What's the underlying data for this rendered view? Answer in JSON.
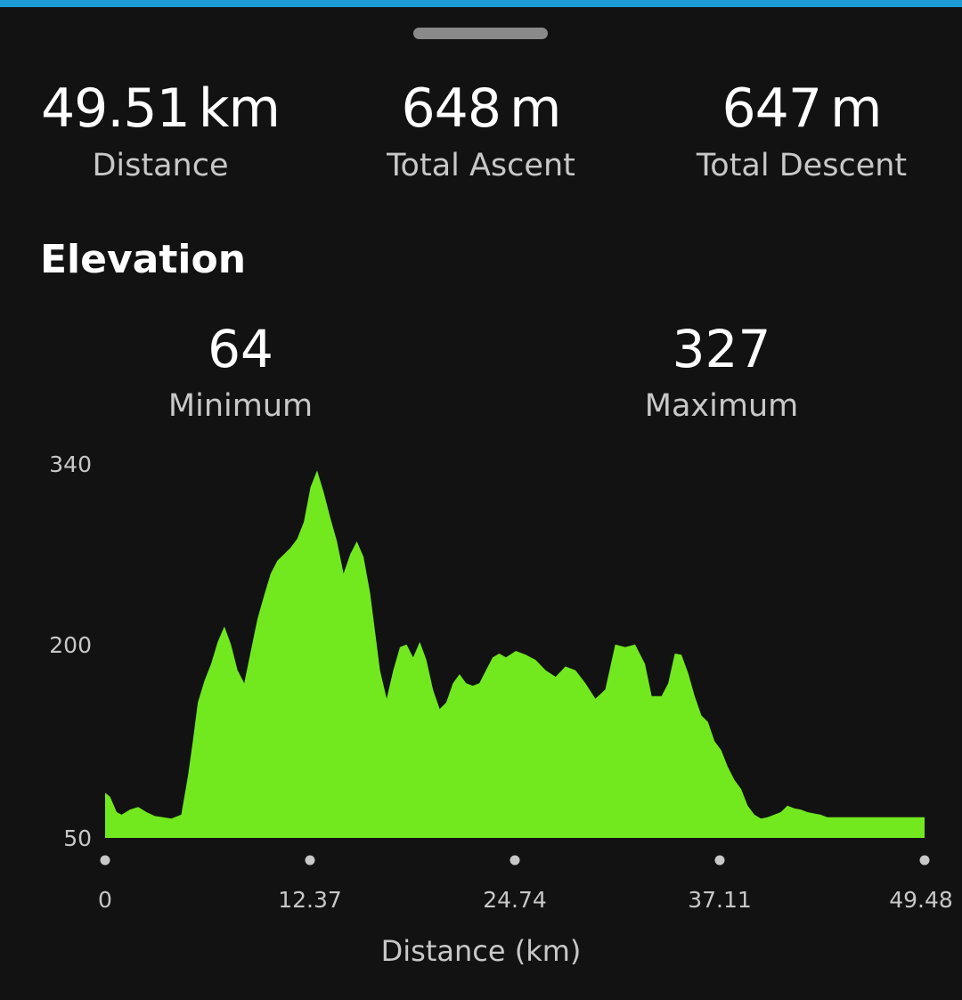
{
  "summary": {
    "distance": {
      "value": "49.51",
      "unit": "km",
      "label": "Distance"
    },
    "ascent": {
      "value": "648",
      "unit": "m",
      "label": "Total Ascent"
    },
    "descent": {
      "value": "647",
      "unit": "m",
      "label": "Total Descent"
    }
  },
  "elevation": {
    "title": "Elevation",
    "minimum": {
      "value": "64",
      "label": "Minimum"
    },
    "maximum": {
      "value": "327",
      "label": "Maximum"
    }
  },
  "colors": {
    "background": "#121212",
    "accent_bar": "#1d9bd7",
    "fill": "#72e81f",
    "axis_text": "#c8c8c8"
  },
  "chart_data": {
    "type": "area",
    "xlabel": "Distance (km)",
    "ylabel": "",
    "title": "",
    "xlim": [
      0,
      49.48
    ],
    "ylim": [
      50,
      340
    ],
    "x_ticks": [
      "0",
      "12.37",
      "24.74",
      "37.11",
      "49.48"
    ],
    "y_ticks": [
      "50",
      "200",
      "340"
    ],
    "grid": false,
    "series": [
      {
        "x": [
          0,
          0.3,
          0.7,
          1.0,
          1.5,
          2.0,
          2.5,
          3.0,
          3.5,
          4.0,
          4.6,
          5.0,
          5.3,
          5.6,
          6.0,
          6.4,
          6.8,
          7.2,
          7.6,
          8.0,
          8.4,
          8.8,
          9.2,
          9.6,
          10.0,
          10.4,
          10.8,
          11.2,
          11.6,
          12.0,
          12.4,
          12.8,
          13.2,
          13.6,
          14.0,
          14.4,
          14.8,
          15.2,
          15.6,
          16.0,
          16.2,
          16.6,
          17.0,
          17.4,
          17.8,
          18.2,
          18.6,
          19.0,
          19.4,
          19.8,
          20.2,
          20.6,
          21.0,
          21.4,
          21.8,
          22.2,
          22.6,
          23.0,
          23.4,
          23.8,
          24.2,
          24.8,
          25.4,
          26.0,
          26.6,
          27.2,
          27.8,
          28.4,
          29.0,
          29.6,
          30.2,
          30.8,
          31.4,
          32.0,
          32.6,
          33.0,
          33.6,
          34.0,
          34.4,
          34.8,
          35.2,
          35.6,
          36.0,
          36.4,
          36.8,
          37.2,
          37.6,
          38.0,
          38.4,
          38.8,
          39.2,
          39.6,
          40.0,
          40.4,
          40.8,
          41.2,
          41.6,
          42.0,
          42.4,
          42.8,
          43.2,
          43.6,
          44.0,
          44.4,
          44.8,
          45.2,
          45.8,
          46.4,
          47.0,
          47.6,
          48.2,
          48.8,
          49.48
        ],
        "y": [
          85,
          82,
          70,
          68,
          72,
          74,
          70,
          67,
          66,
          65,
          68,
          98,
          125,
          155,
          172,
          185,
          202,
          214,
          200,
          180,
          170,
          195,
          220,
          238,
          255,
          265,
          270,
          275,
          282,
          295,
          322,
          335,
          318,
          298,
          280,
          255,
          270,
          280,
          268,
          240,
          220,
          180,
          158,
          180,
          198,
          200,
          190,
          202,
          188,
          165,
          150,
          155,
          170,
          177,
          170,
          168,
          170,
          180,
          190,
          193,
          190,
          195,
          192,
          188,
          180,
          175,
          183,
          180,
          170,
          158,
          165,
          200,
          198,
          200,
          185,
          160,
          160,
          170,
          193,
          192,
          178,
          160,
          145,
          140,
          125,
          118,
          105,
          95,
          88,
          75,
          68,
          65,
          66,
          68,
          70,
          75,
          73,
          72,
          70,
          69,
          68,
          66,
          66,
          66,
          66,
          66,
          66,
          66,
          66,
          66,
          66,
          66,
          66
        ]
      }
    ]
  }
}
